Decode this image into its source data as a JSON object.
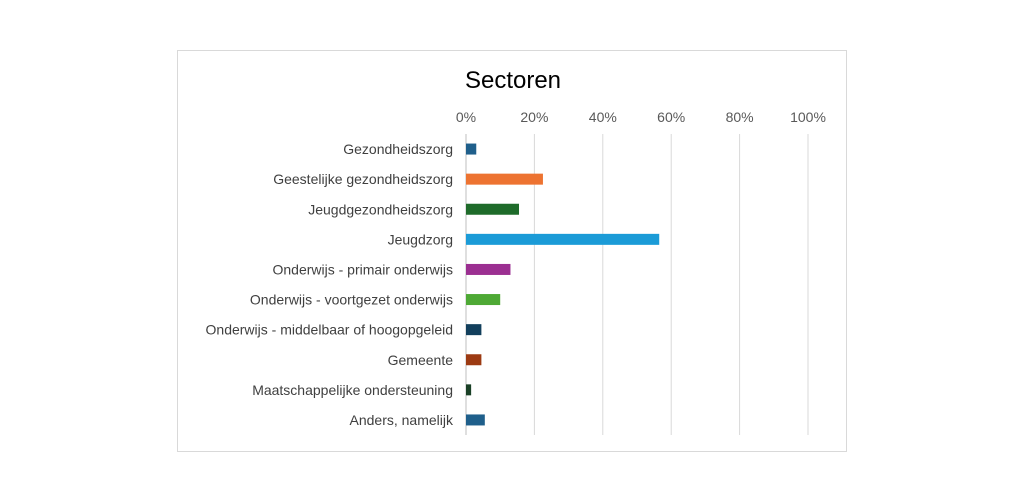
{
  "chart_data": {
    "type": "bar",
    "orientation": "horizontal",
    "title": "Sectoren",
    "xlabel": "",
    "ylabel": "",
    "xlim": [
      0,
      100
    ],
    "x_ticks": [
      "0%",
      "20%",
      "40%",
      "60%",
      "80%",
      "100%"
    ],
    "x_axis_position": "top",
    "grid": true,
    "legend": "none",
    "categories": [
      "Gezondheidszorg",
      "Geestelijke gezondheidszorg",
      "Jeugdgezondheidszorg",
      "Jeugdzorg",
      "Onderwijs - primair onderwijs",
      "Onderwijs - voortgezet onderwijs",
      "Onderwijs - middelbaar of hoogopgeleid",
      "Gemeente",
      "Maatschappelijke ondersteuning",
      "Anders, namelijk"
    ],
    "values": [
      3,
      22.5,
      15.5,
      56.5,
      13,
      10,
      4.5,
      4.5,
      1.5,
      5.5
    ],
    "colors": [
      "#1f5f8b",
      "#ed7331",
      "#1e6b2a",
      "#1b9bd7",
      "#9b2f91",
      "#4ea935",
      "#123f5c",
      "#9c3a12",
      "#1a4026",
      "#1f5f8b"
    ]
  }
}
